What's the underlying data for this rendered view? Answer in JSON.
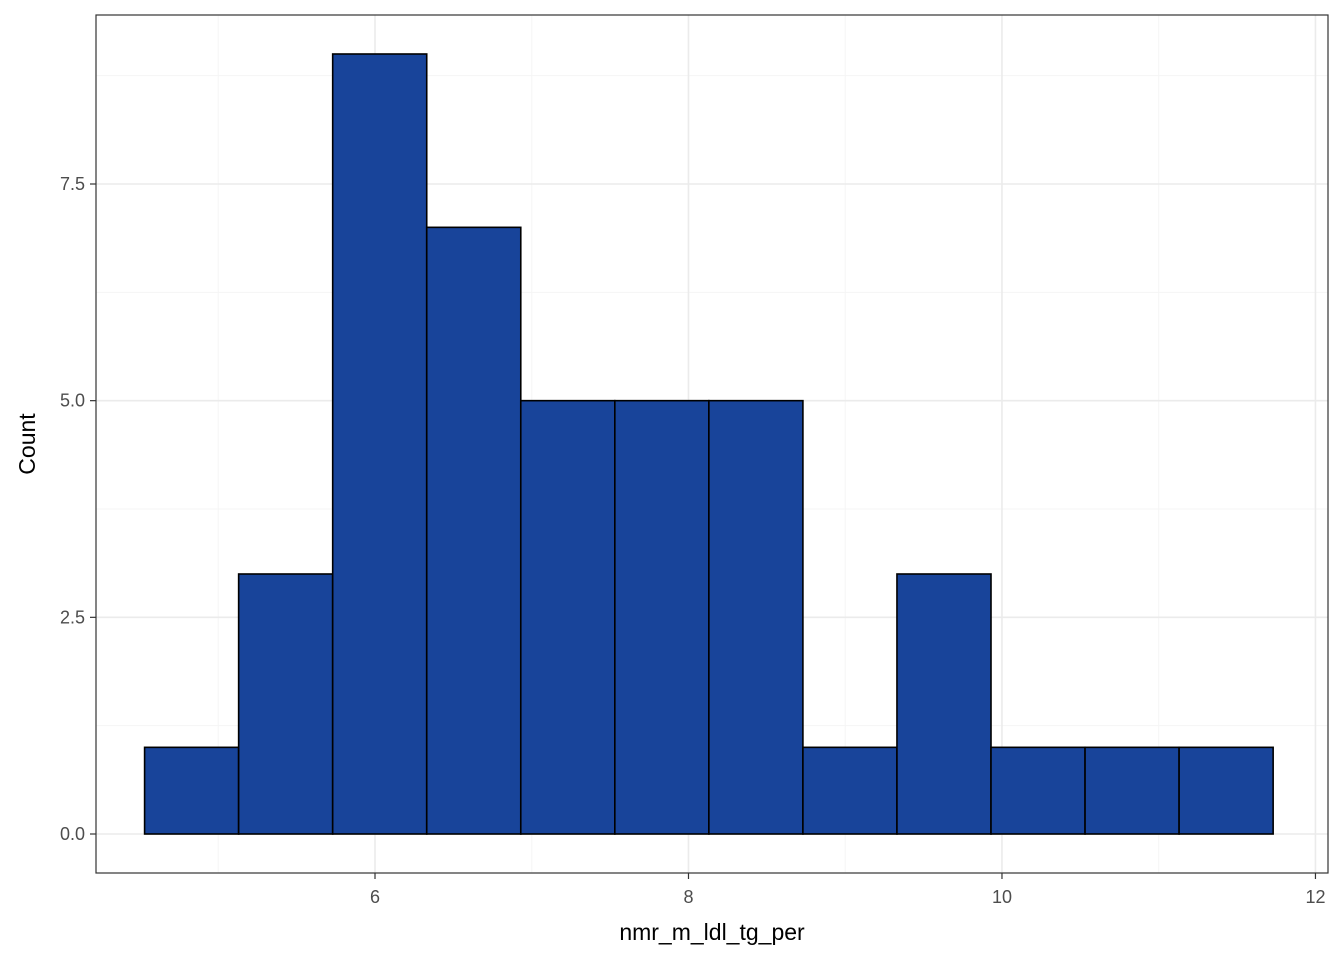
{
  "chart_data": {
    "type": "bar",
    "subtype": "histogram",
    "xlabel": "nmr_m_ldl_tg_per",
    "ylabel": "Count",
    "xlim": [
      4.22,
      12.08
    ],
    "ylim": [
      -0.45,
      9.45
    ],
    "x_ticks": [
      6,
      8,
      10,
      12
    ],
    "x_tick_labels": [
      "6",
      "8",
      "10",
      "12"
    ],
    "x_minor_ticks": [
      5,
      7,
      9,
      11
    ],
    "y_ticks": [
      0,
      2.5,
      5,
      7.5
    ],
    "y_tick_labels": [
      "0.0",
      "2.5",
      "5.0",
      "7.5"
    ],
    "y_minor_ticks": [
      1.25,
      3.75,
      6.25,
      8.75
    ],
    "bins": [
      {
        "start": 4.53,
        "end": 5.13,
        "count": 1
      },
      {
        "start": 5.13,
        "end": 5.73,
        "count": 3
      },
      {
        "start": 5.73,
        "end": 6.33,
        "count": 9
      },
      {
        "start": 6.33,
        "end": 6.93,
        "count": 7
      },
      {
        "start": 6.93,
        "end": 7.53,
        "count": 5
      },
      {
        "start": 7.53,
        "end": 8.13,
        "count": 5
      },
      {
        "start": 8.13,
        "end": 8.73,
        "count": 5
      },
      {
        "start": 8.73,
        "end": 9.33,
        "count": 1
      },
      {
        "start": 9.33,
        "end": 9.93,
        "count": 3
      },
      {
        "start": 9.93,
        "end": 10.53,
        "count": 1
      },
      {
        "start": 10.53,
        "end": 11.13,
        "count": 1
      },
      {
        "start": 11.13,
        "end": 11.73,
        "count": 1
      }
    ],
    "bar_fill": "#18449a",
    "bar_stroke": "#000000",
    "grid": true,
    "grid_major_color": "#ebebeb",
    "grid_minor_color": "#f5f5f5",
    "panel_border_color": "#333333",
    "legend": "none"
  }
}
